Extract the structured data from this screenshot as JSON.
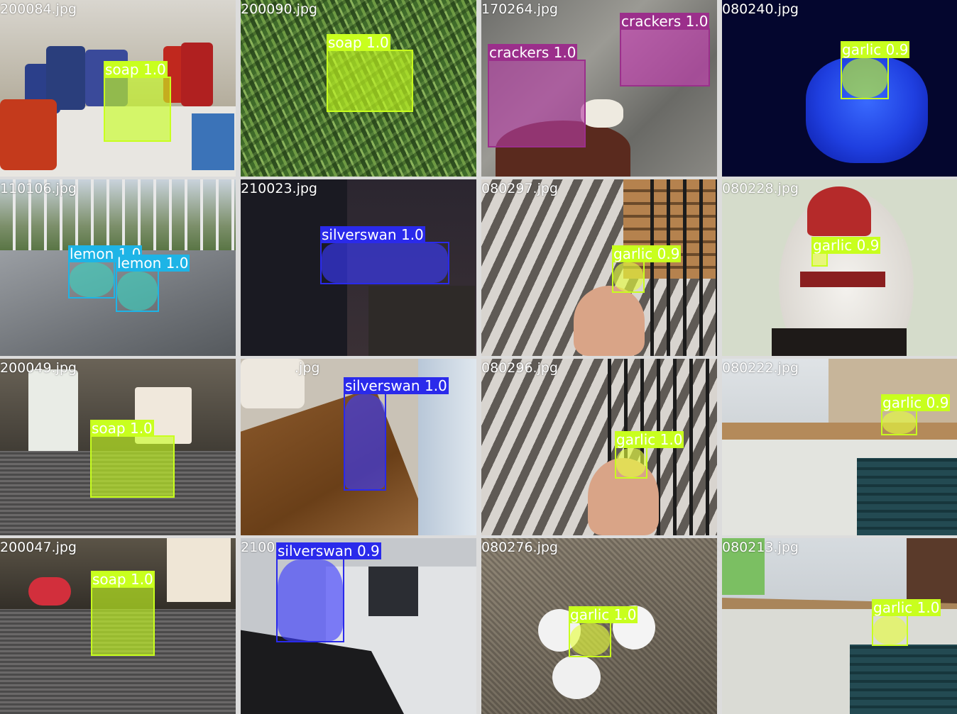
{
  "tiles": [
    {
      "file": "200084.jpg",
      "detections": [
        {
          "label": "soap 1.0",
          "color": "#c8ff1e"
        }
      ]
    },
    {
      "file": "200090.jpg",
      "detections": [
        {
          "label": "soap 1.0",
          "color": "#c8ff1e"
        }
      ]
    },
    {
      "file": "170264.jpg",
      "detections": [
        {
          "label": "crackers 1.0",
          "color": "#9b2f8b"
        },
        {
          "label": "crackers 1.0",
          "color": "#9b2f8b"
        }
      ]
    },
    {
      "file": "080240.jpg",
      "detections": [
        {
          "label": "garlic 0.9",
          "color": "#c8ff1e"
        }
      ]
    },
    {
      "file": "110106.jpg",
      "detections": [
        {
          "label": "lemon 1.0",
          "color": "#1eb4e6"
        },
        {
          "label": "lemon 1.0",
          "color": "#1eb4e6"
        }
      ]
    },
    {
      "file": "210023.jpg",
      "detections": [
        {
          "label": "silverswan 1.0",
          "color": "#2a2aeb"
        }
      ]
    },
    {
      "file": "080297.jpg",
      "detections": [
        {
          "label": "garlic 0.9",
          "color": "#c8ff1e"
        }
      ]
    },
    {
      "file": "080228.jpg",
      "detections": [
        {
          "label": "garlic 0.9",
          "color": "#c8ff1e"
        }
      ]
    },
    {
      "file": "200049.jpg",
      "detections": [
        {
          "label": "soap 1.0",
          "color": "#c8ff1e"
        }
      ]
    },
    {
      "file": ".jpg",
      "detections": [
        {
          "label": "silverswan 1.0",
          "color": "#2a2aeb"
        }
      ]
    },
    {
      "file": "080296.jpg",
      "detections": [
        {
          "label": "garlic 1.0",
          "color": "#c8ff1e"
        }
      ]
    },
    {
      "file": "080222.jpg",
      "detections": [
        {
          "label": "garlic 0.9",
          "color": "#c8ff1e"
        }
      ]
    },
    {
      "file": "200047.jpg",
      "detections": [
        {
          "label": "soap 1.0",
          "color": "#c8ff1e"
        }
      ]
    },
    {
      "file": "2100",
      "detections": [
        {
          "label": "silverswan 0.9",
          "color": "#2a2aeb"
        }
      ]
    },
    {
      "file": "080276.jpg",
      "detections": [
        {
          "label": "garlic 1.0",
          "color": "#c8ff1e"
        }
      ]
    },
    {
      "file": "080213.jpg",
      "detections": [
        {
          "label": "garlic 1.0",
          "color": "#c8ff1e"
        }
      ]
    }
  ]
}
